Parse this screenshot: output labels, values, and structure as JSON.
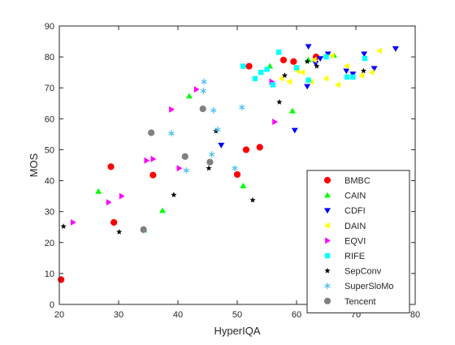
{
  "chart_data": {
    "type": "scatter",
    "xlabel": "HyperIQA",
    "ylabel": "MOS",
    "xlim": [
      20,
      80
    ],
    "ylim": [
      0,
      90
    ],
    "xticks": [
      20,
      30,
      40,
      50,
      60,
      70,
      80
    ],
    "yticks": [
      0,
      10,
      20,
      30,
      40,
      50,
      60,
      70,
      80,
      90
    ],
    "grid": false,
    "legend_position": "lower-right",
    "series": [
      {
        "name": "BMBC",
        "marker": "circle",
        "color": "#ff0000",
        "points": [
          [
            20.3,
            8
          ],
          [
            28.7,
            44.5
          ],
          [
            29.2,
            26.5
          ],
          [
            35.8,
            41.8
          ],
          [
            50,
            42
          ],
          [
            51.5,
            50
          ],
          [
            53.8,
            50.8
          ],
          [
            52,
            77
          ],
          [
            57.8,
            79
          ],
          [
            59.5,
            78.5
          ],
          [
            63.3,
            80
          ]
        ]
      },
      {
        "name": "CAIN",
        "marker": "triangle-up",
        "color": "#00ff00",
        "points": [
          [
            26.6,
            36.5
          ],
          [
            34.3,
            24
          ],
          [
            37.4,
            30.3
          ],
          [
            41.9,
            67.3
          ],
          [
            51,
            38.3
          ],
          [
            55.5,
            77
          ],
          [
            59.3,
            62.5
          ],
          [
            62,
            79
          ],
          [
            66.3,
            80.5
          ]
        ]
      },
      {
        "name": "CDFI",
        "marker": "triangle-down",
        "color": "#0000ff",
        "points": [
          [
            47.3,
            51.5
          ],
          [
            59.7,
            56.3
          ],
          [
            61.8,
            70.5
          ],
          [
            62,
            83.4
          ],
          [
            63.2,
            78
          ],
          [
            64,
            79.5
          ],
          [
            65.3,
            81
          ],
          [
            68.4,
            75.5
          ],
          [
            69.5,
            74.5
          ],
          [
            71.4,
            81
          ],
          [
            73.1,
            76.3
          ],
          [
            76.7,
            82.7
          ]
        ]
      },
      {
        "name": "DAIN",
        "marker": "triangle-left",
        "color": "#ffff00",
        "points": [
          [
            57.5,
            73
          ],
          [
            58.8,
            72
          ],
          [
            60.2,
            75.5
          ],
          [
            61,
            75
          ],
          [
            62.5,
            72
          ],
          [
            63,
            79
          ],
          [
            65,
            73
          ],
          [
            66,
            80.5
          ],
          [
            67,
            71
          ],
          [
            68.5,
            77
          ],
          [
            71,
            74
          ],
          [
            72.7,
            75
          ],
          [
            74,
            82
          ]
        ]
      },
      {
        "name": "EQVI",
        "marker": "triangle-right",
        "color": "#ff00ff",
        "points": [
          [
            22.3,
            26.5
          ],
          [
            28.3,
            33
          ],
          [
            30.5,
            35
          ],
          [
            34.7,
            46.5
          ],
          [
            35.8,
            47
          ],
          [
            38.9,
            63
          ],
          [
            40.2,
            44
          ],
          [
            43.1,
            69.5
          ],
          [
            56.3,
            59
          ],
          [
            55.8,
            72
          ]
        ]
      },
      {
        "name": "RIFE",
        "marker": "square",
        "color": "#00ffff",
        "points": [
          [
            51,
            77
          ],
          [
            53,
            73
          ],
          [
            54,
            75
          ],
          [
            55,
            76
          ],
          [
            56,
            71
          ],
          [
            57,
            81.5
          ],
          [
            60,
            76.5
          ],
          [
            62,
            72.5
          ],
          [
            65,
            80
          ],
          [
            68.5,
            73.5
          ],
          [
            69.5,
            73.5
          ],
          [
            71.5,
            79.5
          ]
        ]
      },
      {
        "name": "SepConv",
        "marker": "pentagram",
        "color": "#000000",
        "points": [
          [
            20.7,
            25.2
          ],
          [
            30.1,
            23.4
          ],
          [
            39.3,
            35.4
          ],
          [
            45.2,
            44
          ],
          [
            46.4,
            56
          ],
          [
            52.6,
            33.7
          ],
          [
            57.1,
            65.4
          ],
          [
            58,
            74
          ],
          [
            61.8,
            78.5
          ],
          [
            63.4,
            77
          ],
          [
            71.3,
            75.5
          ]
        ]
      },
      {
        "name": "SuperSloMo",
        "marker": "asterisk",
        "color": "#4dbeee",
        "points": [
          [
            34.2,
            24
          ],
          [
            38.9,
            55.3
          ],
          [
            41.4,
            43.3
          ],
          [
            44.3,
            69
          ],
          [
            44.4,
            72
          ],
          [
            45.7,
            48.5
          ],
          [
            46,
            62.7
          ],
          [
            46.7,
            56.5
          ],
          [
            49.6,
            44
          ],
          [
            50.8,
            63.7
          ]
        ]
      },
      {
        "name": "Tencent",
        "marker": "circle",
        "color": "#808080",
        "points": [
          [
            34.2,
            24.2
          ],
          [
            35.5,
            55.5
          ],
          [
            41.2,
            47.8
          ],
          [
            44.2,
            63.2
          ],
          [
            45.4,
            46
          ]
        ]
      }
    ]
  }
}
